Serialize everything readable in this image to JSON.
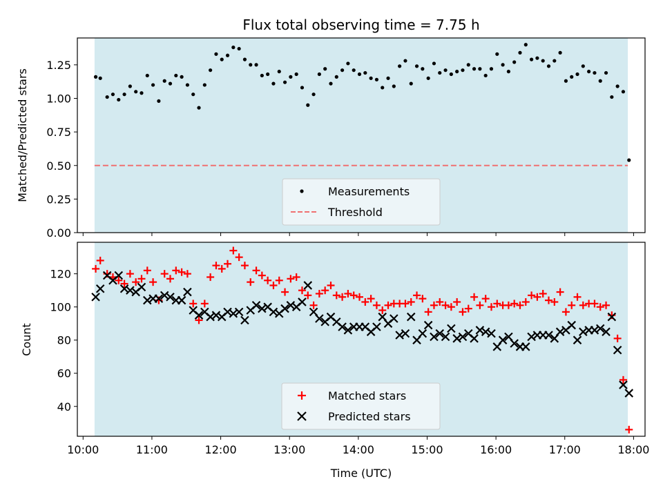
{
  "chart_data": [
    {
      "type": "scatter",
      "title": "Flux total observing time = 7.75 h",
      "xlabel": "",
      "ylabel": "Matched/Predicted stars",
      "ylim": [
        0.0,
        1.45
      ],
      "yticks": [
        "0.00",
        "0.25",
        "0.50",
        "0.75",
        "1.00",
        "1.25"
      ],
      "xlim": [
        "09:55",
        "18:10"
      ],
      "shaded_span": {
        "start": "10:10",
        "end": "17:55",
        "color": "#d4eaf0"
      },
      "threshold": {
        "name": "Threshold",
        "value": 0.5,
        "color": "#f07070",
        "style": "dashed"
      },
      "legend": {
        "position": "bottom-center",
        "entries": [
          "Measurements",
          "Threshold"
        ]
      },
      "series": [
        {
          "name": "Measurements",
          "color": "#000000",
          "marker": "dot",
          "x": [
            "10:11",
            "10:15",
            "10:21",
            "10:26",
            "10:31",
            "10:36",
            "10:41",
            "10:46",
            "10:51",
            "10:56",
            "11:01",
            "11:06",
            "11:11",
            "11:16",
            "11:21",
            "11:26",
            "11:31",
            "11:36",
            "11:41",
            "11:46",
            "11:51",
            "11:56",
            "12:01",
            "12:06",
            "12:11",
            "12:16",
            "12:21",
            "12:26",
            "12:31",
            "12:36",
            "12:41",
            "12:46",
            "12:51",
            "12:56",
            "13:01",
            "13:06",
            "13:11",
            "13:16",
            "13:21",
            "13:26",
            "13:31",
            "13:36",
            "13:41",
            "13:46",
            "13:51",
            "13:56",
            "14:01",
            "14:06",
            "14:11",
            "14:16",
            "14:21",
            "14:26",
            "14:31",
            "14:36",
            "14:41",
            "14:46",
            "14:51",
            "14:56",
            "15:01",
            "15:06",
            "15:11",
            "15:16",
            "15:21",
            "15:26",
            "15:31",
            "15:36",
            "15:41",
            "15:46",
            "15:51",
            "15:56",
            "16:01",
            "16:06",
            "16:11",
            "16:16",
            "16:21",
            "16:26",
            "16:31",
            "16:36",
            "16:41",
            "16:46",
            "16:51",
            "16:56",
            "17:01",
            "17:06",
            "17:11",
            "17:16",
            "17:21",
            "17:26",
            "17:31",
            "17:36",
            "17:41",
            "17:46",
            "17:51",
            "17:56"
          ],
          "y": [
            1.16,
            1.15,
            1.01,
            1.03,
            0.99,
            1.03,
            1.09,
            1.05,
            1.04,
            1.17,
            1.1,
            0.98,
            1.13,
            1.11,
            1.17,
            1.16,
            1.1,
            1.03,
            0.93,
            1.1,
            1.21,
            1.33,
            1.29,
            1.32,
            1.38,
            1.37,
            1.29,
            1.25,
            1.25,
            1.17,
            1.18,
            1.11,
            1.2,
            1.12,
            1.16,
            1.18,
            1.08,
            0.95,
            1.03,
            1.18,
            1.22,
            1.11,
            1.16,
            1.21,
            1.26,
            1.21,
            1.18,
            1.19,
            1.15,
            1.14,
            1.08,
            1.15,
            1.09,
            1.24,
            1.28,
            1.11,
            1.24,
            1.22,
            1.15,
            1.26,
            1.19,
            1.21,
            1.18,
            1.2,
            1.21,
            1.25,
            1.22,
            1.22,
            1.17,
            1.22,
            1.33,
            1.25,
            1.2,
            1.27,
            1.34,
            1.4,
            1.29,
            1.3,
            1.28,
            1.24,
            1.28,
            1.34,
            1.13,
            1.16,
            1.18,
            1.24,
            1.2,
            1.19,
            1.13,
            1.19,
            1.01,
            1.09,
            1.05,
            0.54
          ]
        }
      ]
    },
    {
      "type": "scatter",
      "title": "",
      "xlabel": "Time (UTC)",
      "ylabel": "Count",
      "ylim": [
        22,
        139
      ],
      "yticks": [
        "40",
        "60",
        "80",
        "100",
        "120"
      ],
      "xlim": [
        "09:55",
        "18:10"
      ],
      "xticks": [
        "10:00",
        "11:00",
        "12:00",
        "13:00",
        "14:00",
        "15:00",
        "16:00",
        "17:00",
        "18:00"
      ],
      "shaded_span": {
        "start": "10:10",
        "end": "17:55",
        "color": "#d4eaf0"
      },
      "legend": {
        "position": "bottom-center",
        "entries": [
          "Matched stars",
          "Predicted stars"
        ]
      },
      "series": [
        {
          "name": "Matched stars",
          "color": "#ff0000",
          "marker": "plus",
          "x": [
            "10:11",
            "10:15",
            "10:21",
            "10:26",
            "10:31",
            "10:36",
            "10:41",
            "10:46",
            "10:51",
            "10:56",
            "11:01",
            "11:06",
            "11:11",
            "11:16",
            "11:21",
            "11:26",
            "11:31",
            "11:36",
            "11:41",
            "11:46",
            "11:51",
            "11:56",
            "12:01",
            "12:06",
            "12:11",
            "12:16",
            "12:21",
            "12:26",
            "12:31",
            "12:36",
            "12:41",
            "12:46",
            "12:51",
            "12:56",
            "13:01",
            "13:06",
            "13:11",
            "13:16",
            "13:21",
            "13:26",
            "13:31",
            "13:36",
            "13:41",
            "13:46",
            "13:51",
            "13:56",
            "14:01",
            "14:06",
            "14:11",
            "14:16",
            "14:21",
            "14:26",
            "14:31",
            "14:36",
            "14:41",
            "14:46",
            "14:51",
            "14:56",
            "15:01",
            "15:06",
            "15:11",
            "15:16",
            "15:21",
            "15:26",
            "15:31",
            "15:36",
            "15:41",
            "15:46",
            "15:51",
            "15:56",
            "16:01",
            "16:06",
            "16:11",
            "16:16",
            "16:21",
            "16:26",
            "16:31",
            "16:36",
            "16:41",
            "16:46",
            "16:51",
            "16:56",
            "17:01",
            "17:06",
            "17:11",
            "17:16",
            "17:21",
            "17:26",
            "17:31",
            "17:36",
            "17:41",
            "17:46",
            "17:51",
            "17:56"
          ],
          "y": [
            123,
            128,
            120,
            118,
            116,
            114,
            120,
            115,
            117,
            122,
            115,
            104,
            120,
            117,
            122,
            121,
            120,
            102,
            92,
            102,
            118,
            125,
            123,
            126,
            134,
            130,
            125,
            115,
            122,
            119,
            116,
            113,
            116,
            109,
            117,
            118,
            110,
            107,
            101,
            108,
            110,
            113,
            107,
            106,
            108,
            107,
            106,
            103,
            105,
            101,
            98,
            101,
            102,
            102,
            102,
            103,
            107,
            105,
            97,
            101,
            103,
            101,
            100,
            103,
            97,
            99,
            106,
            101,
            105,
            100,
            102,
            101,
            101,
            102,
            101,
            103,
            107,
            106,
            108,
            104,
            103,
            109,
            97,
            101,
            106,
            101,
            102,
            102,
            100,
            101,
            95,
            81,
            56,
            26
          ]
        },
        {
          "name": "Predicted stars",
          "color": "#000000",
          "marker": "x",
          "x": [
            "10:11",
            "10:15",
            "10:21",
            "10:26",
            "10:31",
            "10:36",
            "10:41",
            "10:46",
            "10:51",
            "10:56",
            "11:01",
            "11:06",
            "11:11",
            "11:16",
            "11:21",
            "11:26",
            "11:31",
            "11:36",
            "11:41",
            "11:46",
            "11:51",
            "11:56",
            "12:01",
            "12:06",
            "12:11",
            "12:16",
            "12:21",
            "12:26",
            "12:31",
            "12:36",
            "12:41",
            "12:46",
            "12:51",
            "12:56",
            "13:01",
            "13:06",
            "13:11",
            "13:16",
            "13:21",
            "13:26",
            "13:31",
            "13:36",
            "13:41",
            "13:46",
            "13:51",
            "13:56",
            "14:01",
            "14:06",
            "14:11",
            "14:16",
            "14:21",
            "14:26",
            "14:31",
            "14:36",
            "14:41",
            "14:46",
            "14:51",
            "14:56",
            "15:01",
            "15:06",
            "15:11",
            "15:16",
            "15:21",
            "15:26",
            "15:31",
            "15:36",
            "15:41",
            "15:46",
            "15:51",
            "15:56",
            "16:01",
            "16:06",
            "16:11",
            "16:16",
            "16:21",
            "16:26",
            "16:31",
            "16:36",
            "16:41",
            "16:46",
            "16:51",
            "16:56",
            "17:01",
            "17:06",
            "17:11",
            "17:16",
            "17:21",
            "17:26",
            "17:31",
            "17:36",
            "17:41",
            "17:46",
            "17:51",
            "17:56"
          ],
          "y": [
            106,
            111,
            119,
            116,
            119,
            111,
            110,
            109,
            112,
            104,
            105,
            105,
            107,
            106,
            104,
            104,
            109,
            98,
            95,
            97,
            94,
            95,
            94,
            97,
            96,
            97,
            92,
            98,
            101,
            99,
            100,
            97,
            96,
            99,
            101,
            100,
            103,
            113,
            97,
            93,
            91,
            94,
            91,
            88,
            86,
            88,
            88,
            88,
            85,
            88,
            94,
            90,
            93,
            83,
            84,
            94,
            80,
            84,
            89,
            82,
            84,
            82,
            87,
            81,
            82,
            84,
            81,
            86,
            85,
            84,
            76,
            80,
            82,
            78,
            76,
            76,
            82,
            83,
            83,
            83,
            81,
            85,
            86,
            89,
            80,
            85,
            86,
            86,
            87,
            85,
            94,
            74,
            53,
            48
          ]
        }
      ]
    }
  ]
}
